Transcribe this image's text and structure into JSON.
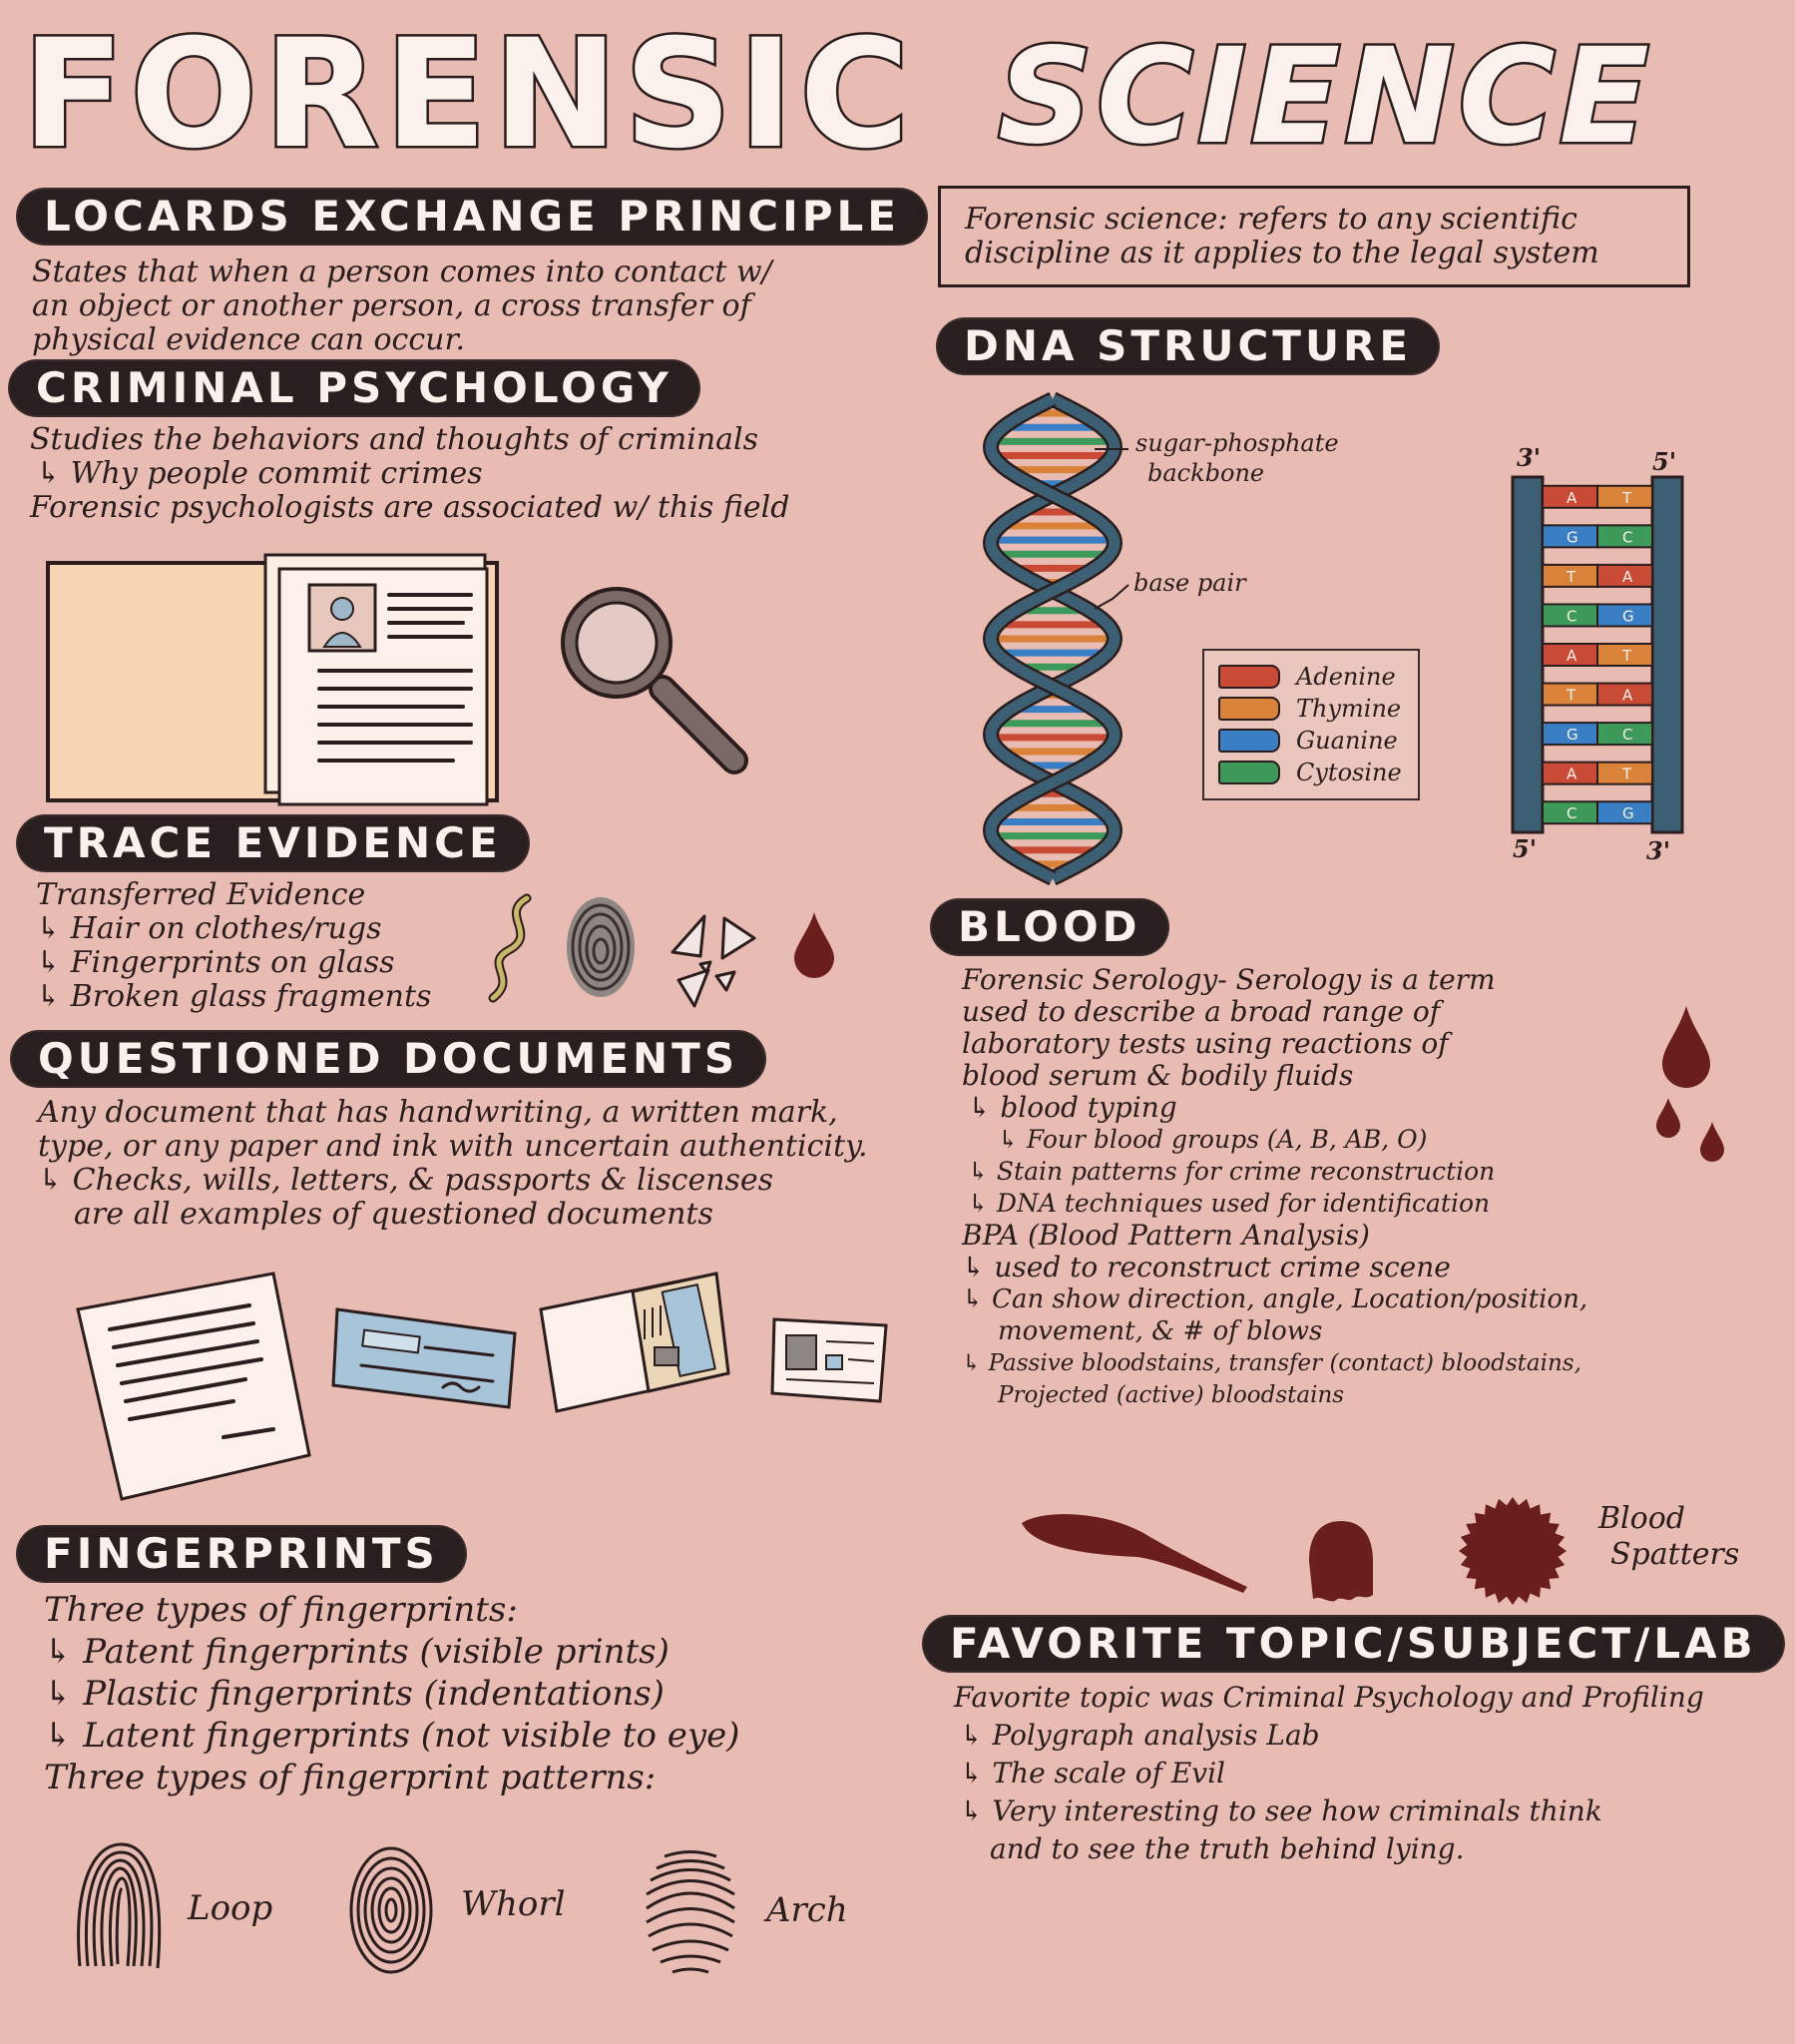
{
  "title": {
    "word1": "FORENSIC",
    "word2": "SCIENCE"
  },
  "locard": {
    "heading": "LOCARDS EXCHANGE PRINCIPLE",
    "lines": [
      "States that when a person comes into contact w/",
      "an object or another person, a cross transfer of",
      "physical evidence can occur."
    ]
  },
  "definition": {
    "lines": [
      "Forensic science: refers to any scientific",
      "discipline as it applies to the legal system"
    ]
  },
  "criminal": {
    "heading": "CRIMINAL PSYCHOLOGY",
    "lines": [
      "Studies the behaviors and thoughts of criminals",
      "↳ Why people commit crimes",
      "Forensic psychologists are associated w/ this field"
    ]
  },
  "dna": {
    "heading": "DNA STRUCTURE",
    "label_backbone_1": "sugar-phosphate",
    "label_backbone_2": "backbone",
    "label_basepair": "base pair",
    "legend": [
      {
        "name": "Adenine",
        "color": "#c94a35"
      },
      {
        "name": "Thymine",
        "color": "#d8823a"
      },
      {
        "name": "Guanine",
        "color": "#3a7fc4"
      },
      {
        "name": "Cytosine",
        "color": "#3e9a5a"
      }
    ],
    "ladder_top_left": "3'",
    "ladder_top_right": "5'",
    "ladder_bottom_left": "5'",
    "ladder_bottom_right": "3'",
    "pairs": [
      [
        "A",
        "T"
      ],
      [
        "G",
        "C"
      ],
      [
        "T",
        "A"
      ],
      [
        "C",
        "G"
      ],
      [
        "A",
        "T"
      ],
      [
        "T",
        "A"
      ],
      [
        "G",
        "C"
      ],
      [
        "A",
        "T"
      ],
      [
        "C",
        "G"
      ]
    ]
  },
  "trace": {
    "heading": "TRACE EVIDENCE",
    "lines": [
      "Transferred Evidence",
      "↳ Hair on clothes/rugs",
      "↳ Fingerprints on glass",
      "↳ Broken glass fragments"
    ]
  },
  "blood": {
    "heading": "BLOOD",
    "lines": [
      "Forensic Serology- Serology is a term",
      "used to describe a broad range of",
      "laboratory tests using reactions of",
      "blood serum & bodily fluids",
      "↳ blood typing",
      "↳ Four blood groups (A, B, AB, O)",
      "↳ Stain patterns for crime reconstruction",
      "↳ DNA techniques used for identification",
      "BPA (Blood Pattern Analysis)",
      "↳ used to reconstruct crime scene",
      "↳ Can show direction, angle, Location/position,",
      "movement, & # of blows",
      "↳ Passive bloodstains, transfer (contact) bloodstains,",
      "Projected (active) bloodstains"
    ],
    "spatter_label_1": "Blood",
    "spatter_label_2": "Spatters"
  },
  "questioned": {
    "heading": "QUESTIONED DOCUMENTS",
    "lines": [
      "Any document that has handwriting, a written mark,",
      "type, or any paper and ink with uncertain authenticity.",
      "↳ Checks, wills, letters, & passports & liscenses",
      "are all examples of questioned documents"
    ]
  },
  "fingerprints": {
    "heading": "FINGERPRINTS",
    "lines": [
      "Three types of fingerprints:",
      "↳ Patent fingerprints (visible prints)",
      "↳ Plastic fingerprints (indentations)",
      "↳ Latent fingerprints (not visible to eye)",
      "Three types of fingerprint patterns:"
    ],
    "patterns": [
      "Loop",
      "Whorl",
      "Arch"
    ]
  },
  "favorite": {
    "heading": "FAVORITE TOPIC/SUBJECT/LAB",
    "lines": [
      "Favorite topic was Criminal Psychology and Profiling",
      "↳ Polygraph analysis Lab",
      "↳ The scale of Evil",
      "↳ Very interesting to see how criminals think",
      "and to see the truth behind lying."
    ]
  },
  "colors": {
    "background": "#e8bcb2",
    "banner": "#2a1f1f",
    "blood": "#6b1f1c",
    "dna_strand": "#3d5f73"
  }
}
